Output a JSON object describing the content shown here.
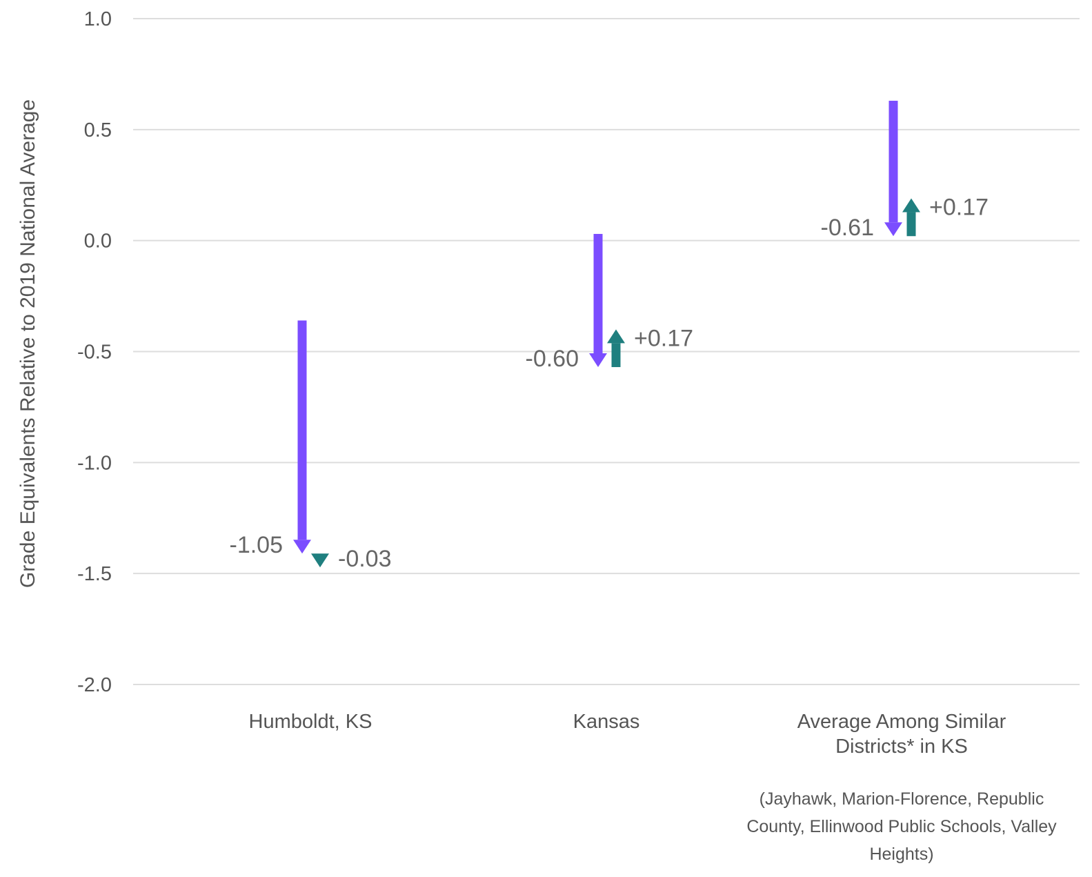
{
  "colors": {
    "decline": "#7b4dff",
    "recovery": "#1f7f7f",
    "grid": "#dddddd",
    "text": "#555555"
  },
  "chart_data": {
    "type": "arrow",
    "ylabel": "Grade Equivalents Relative to 2019 National Average",
    "ylim": [
      -2.0,
      1.0
    ],
    "yticks": [
      "1.0",
      "0.5",
      "0.0",
      "-0.5",
      "-1.0",
      "-1.5",
      "-2.0"
    ],
    "ytick_values": [
      1.0,
      0.5,
      0.0,
      -0.5,
      -1.0,
      -1.5,
      -2.0
    ],
    "grid": true,
    "categories": [
      {
        "label_lines": [
          "Humboldt, KS"
        ],
        "note_lines": [],
        "start": -0.36,
        "decline": -1.05,
        "recovery": -0.03,
        "decline_label": "-1.05",
        "recovery_label": "-0.03"
      },
      {
        "label_lines": [
          "Kansas"
        ],
        "note_lines": [],
        "start": 0.03,
        "decline": -0.6,
        "recovery": 0.17,
        "decline_label": "-0.60",
        "recovery_label": "+0.17"
      },
      {
        "label_lines": [
          "Average Among Similar",
          "Districts* in KS"
        ],
        "note_lines": [
          "(Jayhawk, Marion-Florence, Republic",
          "County, Ellinwood Public Schools, Valley",
          "Heights)"
        ],
        "start": 0.63,
        "decline": -0.61,
        "recovery": 0.17,
        "decline_label": "-0.61",
        "recovery_label": "+0.17"
      }
    ]
  }
}
